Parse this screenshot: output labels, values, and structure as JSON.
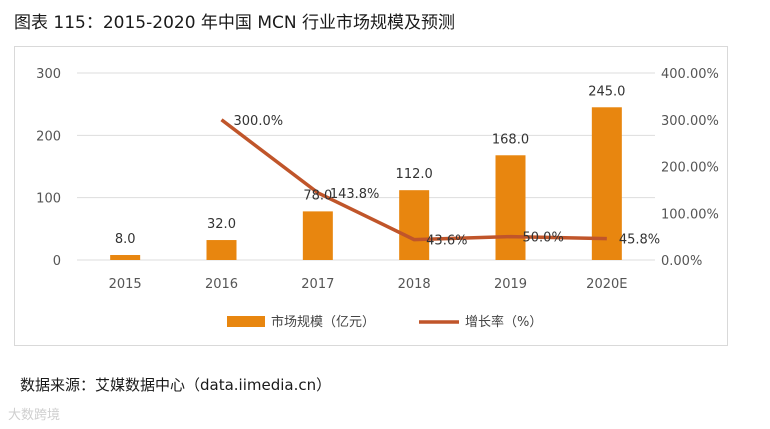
{
  "figure_title": "图表 115：2015-2020 年中国 MCN 行业市场规模及预测",
  "source_text": "数据来源：艾媒数据中心（data.iimedia.cn）",
  "watermark_text": "大数跨境",
  "colors": {
    "bar": "#E8860F",
    "line": "#C0552A",
    "grid": "#dddddd"
  },
  "chart_data": {
    "type": "bar",
    "title": "",
    "categories": [
      "2015",
      "2016",
      "2017",
      "2018",
      "2019",
      "2020E"
    ],
    "series": [
      {
        "name": "市场规模（亿元）",
        "kind": "bar",
        "axis": "left",
        "values": [
          8.0,
          32.0,
          78.0,
          112.0,
          168.0,
          245.0
        ],
        "labels": [
          "8.0",
          "32.0",
          "78.0",
          "112.0",
          "168.0",
          "245.0"
        ]
      },
      {
        "name": "增长率（%）",
        "kind": "line",
        "axis": "right",
        "values": [
          null,
          300.0,
          143.8,
          43.6,
          50.0,
          45.8
        ],
        "labels": [
          "",
          "300.0%",
          "143.8%",
          "43.6%",
          "50.0%",
          "45.8%"
        ]
      }
    ],
    "y_left": {
      "min": 0,
      "max": 300,
      "ticks": [
        "0",
        "100",
        "200",
        "300"
      ]
    },
    "y_right": {
      "min": 0,
      "max": 400,
      "ticks": [
        "0.00%",
        "100.00%",
        "200.00%",
        "300.00%",
        "400.00%"
      ]
    },
    "legend_position": "bottom"
  }
}
